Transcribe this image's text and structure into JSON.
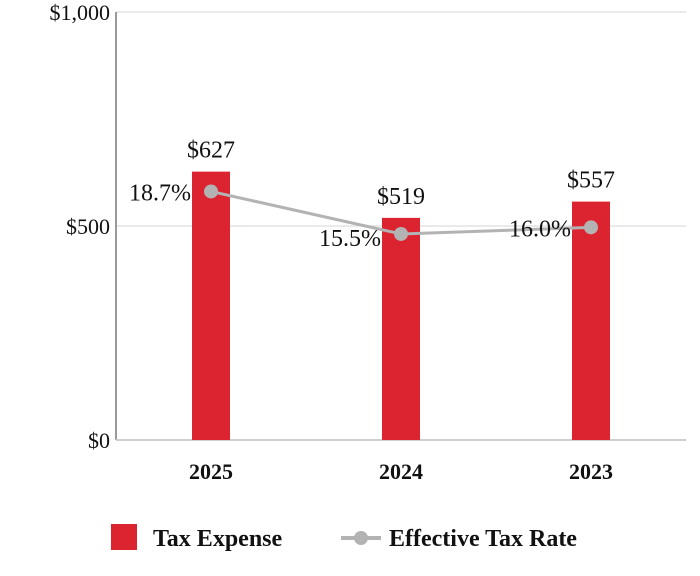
{
  "chart_data": {
    "type": "bar",
    "categories": [
      "2025",
      "2024",
      "2023"
    ],
    "ylim": [
      0,
      1000
    ],
    "yticks": [
      0,
      500,
      1000
    ],
    "ytick_labels": [
      "$0",
      "$500",
      "$1,000"
    ],
    "grid": true,
    "legend_position": "bottom",
    "series": [
      {
        "name": "Tax Expense",
        "kind": "bar",
        "color": "#DC2430",
        "values": [
          627,
          519,
          557
        ],
        "labels": [
          "$627",
          "$519",
          "$557"
        ]
      },
      {
        "name": "Effective Tax Rate",
        "kind": "line",
        "color": "#B3B3B3",
        "values": [
          18.7,
          15.5,
          16.0
        ],
        "labels": [
          "18.7%",
          "15.5%",
          "16.0%"
        ]
      }
    ]
  }
}
